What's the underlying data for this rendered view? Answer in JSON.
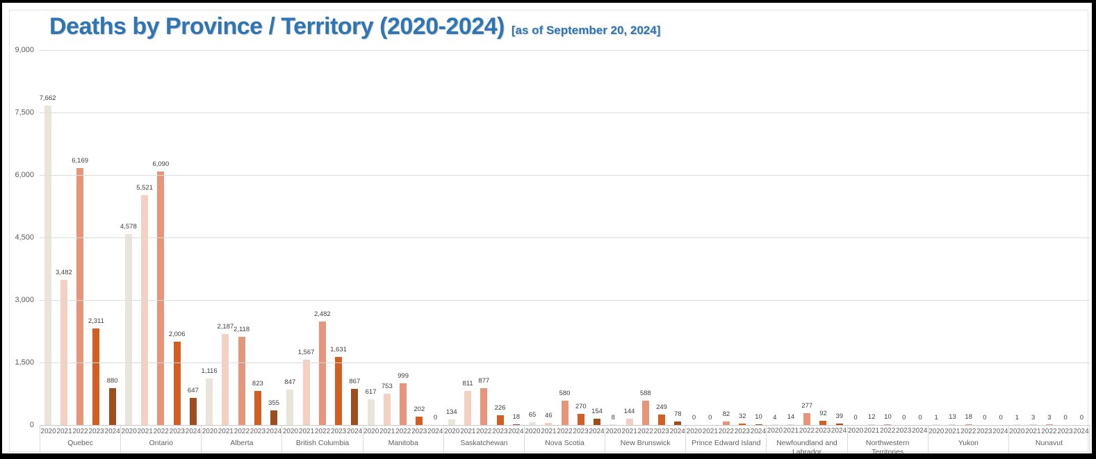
{
  "window": {
    "background": "#ffffff",
    "frame_border_color": "#000000",
    "inner_border_color": "#e3e3e3"
  },
  "header": {
    "title": "Deaths by Province / Territory (2020-2024)",
    "subtitle": "[as of September 20, 2024]",
    "title_color": "#2E75B6"
  },
  "chart_data": {
    "type": "bar",
    "title": "Deaths by Province / Territory (2020-2024)",
    "subtitle": "[as of September 20, 2024]",
    "xlabel": "",
    "ylabel": "",
    "ylim": [
      0,
      9000
    ],
    "yticks": [
      9000,
      7500,
      6000,
      4500,
      3000,
      1500,
      0
    ],
    "ytick_labels": [
      "9,000",
      "7,500",
      "6,000",
      "4,500",
      "3,000",
      "1,500",
      "0"
    ],
    "grid": true,
    "legend": "none",
    "value_labels": true,
    "gridline_color": "#dcdcdc",
    "axis_line_color": "#c9c9c9",
    "axis_text_color": "#5f5f5f",
    "value_label_color": "#3c3c3c",
    "categories": [
      "Quebec",
      "Ontario",
      "Alberta",
      "British Columbia",
      "Manitoba",
      "Saskatchewan",
      "Nova Scotia",
      "New Brunswick",
      "Prince Edward Island",
      "Newfoundland and Labrador",
      "Northwestern Territories",
      "Yukon",
      "Nunavut"
    ],
    "years": [
      "2020",
      "2021",
      "2022",
      "2023",
      "2024"
    ],
    "series": [
      {
        "name": "2020",
        "color": "#EAE5DA",
        "values": [
          7662,
          4578,
          1116,
          847,
          617,
          134,
          65,
          8,
          0,
          4,
          0,
          1,
          1
        ]
      },
      {
        "name": "2021",
        "color": "#F3D0C1",
        "values": [
          3482,
          5521,
          2187,
          1567,
          753,
          811,
          46,
          144,
          0,
          14,
          12,
          13,
          3
        ]
      },
      {
        "name": "2022",
        "color": "#E7957A",
        "values": [
          6169,
          6090,
          2118,
          2482,
          999,
          877,
          580,
          588,
          82,
          277,
          10,
          18,
          3
        ]
      },
      {
        "name": "2023",
        "color": "#D35E22",
        "values": [
          2311,
          2006,
          823,
          1631,
          202,
          226,
          270,
          249,
          32,
          92,
          0,
          0,
          0
        ]
      },
      {
        "name": "2024",
        "color": "#A04D1D",
        "values": [
          880,
          647,
          355,
          867,
          0,
          18,
          154,
          78,
          10,
          39,
          0,
          0,
          0
        ]
      }
    ]
  }
}
